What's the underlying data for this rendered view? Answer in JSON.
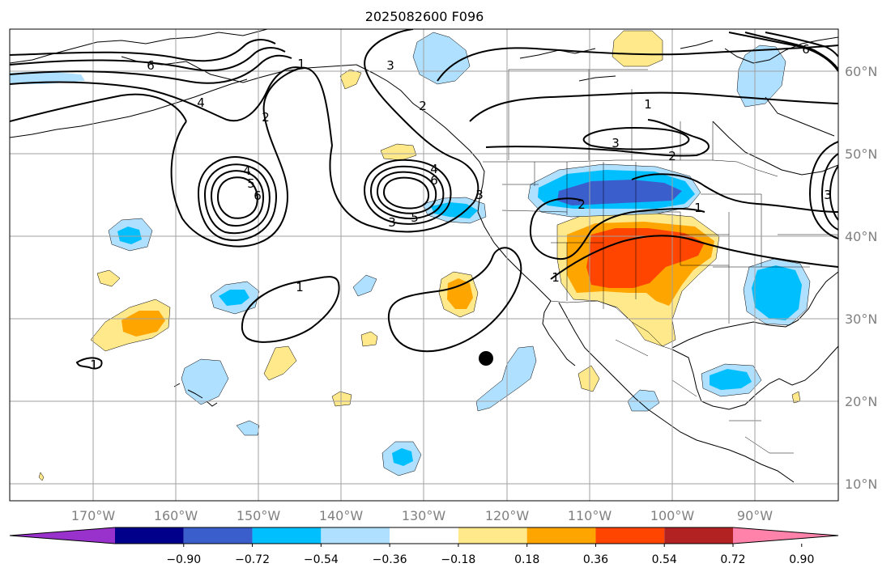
{
  "title": "2025082600 F096",
  "lon_labels": [
    "170°W",
    "160°W",
    "150°W",
    "140°W",
    "130°W",
    "120°W",
    "110°W",
    "100°W",
    "90°W"
  ],
  "lat_labels": [
    "60°N",
    "50°N",
    "40°N",
    "30°N",
    "20°N",
    "10°N"
  ],
  "colorbar": {
    "colors": [
      "#9932cc",
      "#00008b",
      "#3a5fcd",
      "#00bfff",
      "#b0e0ff",
      "#ffffff",
      "#ffe98a",
      "#ffa500",
      "#ff4500",
      "#b22222",
      "#ff82ab"
    ],
    "tick_labels": [
      "−0.90",
      "−0.72",
      "−0.54",
      "−0.36",
      "−0.18",
      "0.18",
      "0.36",
      "0.54",
      "0.72",
      "0.90"
    ]
  },
  "contour_labels": [
    "6",
    "4",
    "2",
    "1",
    "3",
    "2",
    "1",
    "3",
    "4",
    "5",
    "6",
    "3",
    "4",
    "3",
    "5",
    "6",
    "1",
    "1",
    "2",
    "1",
    "1",
    "2",
    "3",
    "6"
  ],
  "marker": "point"
}
